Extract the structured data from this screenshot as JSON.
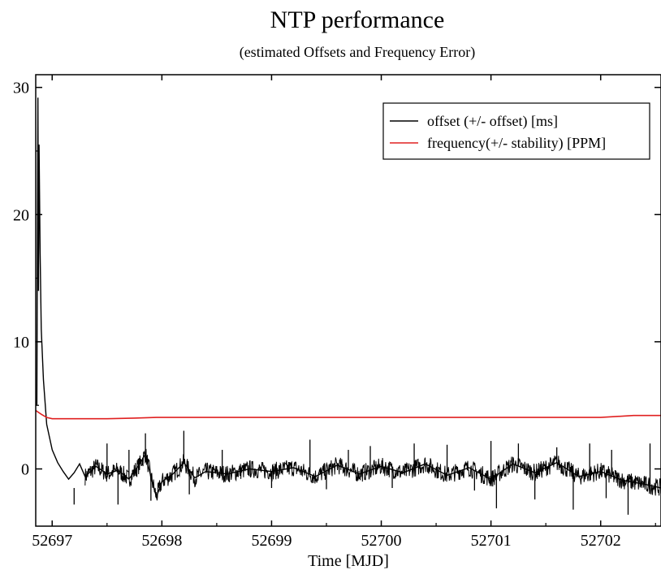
{
  "chart_data": {
    "type": "line",
    "title": "NTP performance",
    "subtitle": "(estimated Offsets and Frequency Error)",
    "xlabel": "Time [MJD]",
    "ylabel": "",
    "xlim": [
      52696.85,
      52702.55
    ],
    "ylim": [
      -4.5,
      31
    ],
    "x_ticks": [
      52697,
      52698,
      52699,
      52700,
      52701,
      52702
    ],
    "y_ticks": [
      0,
      10,
      20,
      30
    ],
    "grid": false,
    "legend_position": "top-right",
    "series": [
      {
        "name": "offset (+/- offset) [ms]",
        "color": "#000000",
        "points": [
          [
            52696.86,
            5.0
          ],
          [
            52696.87,
            29.2
          ],
          [
            52696.875,
            14.0
          ],
          [
            52696.88,
            25.5
          ],
          [
            52696.89,
            17.0
          ],
          [
            52696.9,
            11.0
          ],
          [
            52696.92,
            7.0
          ],
          [
            52696.95,
            3.5
          ],
          [
            52697.0,
            1.5
          ],
          [
            52697.05,
            0.5
          ],
          [
            52697.1,
            -0.2
          ],
          [
            52697.15,
            -0.8
          ],
          [
            52697.2,
            -0.3
          ],
          [
            52697.25,
            0.4
          ],
          [
            52697.3,
            -0.6
          ],
          [
            52697.4,
            0.2
          ],
          [
            52697.5,
            -0.4
          ],
          [
            52697.6,
            -0.1
          ],
          [
            52697.7,
            -0.8
          ],
          [
            52697.8,
            0.4
          ],
          [
            52697.85,
            1.2
          ],
          [
            52697.9,
            -0.6
          ],
          [
            52697.95,
            -2.2
          ],
          [
            52698.0,
            -1.0
          ],
          [
            52698.1,
            -0.4
          ],
          [
            52698.2,
            0.5
          ],
          [
            52698.3,
            -0.7
          ],
          [
            52698.4,
            -0.2
          ],
          [
            52698.6,
            -0.4
          ],
          [
            52698.8,
            0.0
          ],
          [
            52699.0,
            -0.2
          ],
          [
            52699.2,
            0.1
          ],
          [
            52699.4,
            -0.6
          ],
          [
            52699.6,
            0.3
          ],
          [
            52699.8,
            -0.4
          ],
          [
            52700.0,
            0.2
          ],
          [
            52700.2,
            -0.3
          ],
          [
            52700.4,
            0.4
          ],
          [
            52700.6,
            -0.5
          ],
          [
            52700.8,
            0.1
          ],
          [
            52701.0,
            -0.8
          ],
          [
            52701.2,
            0.4
          ],
          [
            52701.4,
            -0.3
          ],
          [
            52701.6,
            0.5
          ],
          [
            52701.8,
            -0.6
          ],
          [
            52702.0,
            -0.2
          ],
          [
            52702.2,
            -0.9
          ],
          [
            52702.4,
            -1.2
          ],
          [
            52702.55,
            -1.5
          ]
        ],
        "spikes": [
          [
            52697.2,
            -2.8
          ],
          [
            52697.5,
            2.0
          ],
          [
            52697.6,
            -2.8
          ],
          [
            52697.7,
            1.5
          ],
          [
            52697.85,
            2.8
          ],
          [
            52697.9,
            -2.5
          ],
          [
            52698.2,
            3.0
          ],
          [
            52698.25,
            -2.0
          ],
          [
            52698.55,
            1.5
          ],
          [
            52699.0,
            -1.5
          ],
          [
            52699.35,
            2.3
          ],
          [
            52699.5,
            -1.6
          ],
          [
            52699.7,
            1.5
          ],
          [
            52699.9,
            1.8
          ],
          [
            52700.1,
            -1.5
          ],
          [
            52700.3,
            2.0
          ],
          [
            52700.6,
            1.9
          ],
          [
            52700.85,
            -1.7
          ],
          [
            52701.0,
            2.2
          ],
          [
            52701.05,
            -3.1
          ],
          [
            52701.25,
            2.0
          ],
          [
            52701.4,
            -2.4
          ],
          [
            52701.6,
            1.7
          ],
          [
            52701.75,
            -3.2
          ],
          [
            52701.9,
            2.0
          ],
          [
            52702.05,
            -2.3
          ],
          [
            52702.1,
            1.5
          ],
          [
            52702.25,
            -3.6
          ],
          [
            52702.45,
            2.0
          ]
        ]
      },
      {
        "name": "frequency(+/- stability) [PPM]",
        "color": "#e02020",
        "points": [
          [
            52696.85,
            4.6
          ],
          [
            52696.9,
            4.3
          ],
          [
            52696.95,
            4.05
          ],
          [
            52697.0,
            3.95
          ],
          [
            52697.5,
            3.95
          ],
          [
            52697.75,
            4.0
          ],
          [
            52697.95,
            4.05
          ],
          [
            52698.3,
            4.05
          ],
          [
            52700.0,
            4.05
          ],
          [
            52701.0,
            4.05
          ],
          [
            52702.0,
            4.05
          ],
          [
            52702.3,
            4.2
          ],
          [
            52702.55,
            4.2
          ]
        ]
      }
    ]
  }
}
